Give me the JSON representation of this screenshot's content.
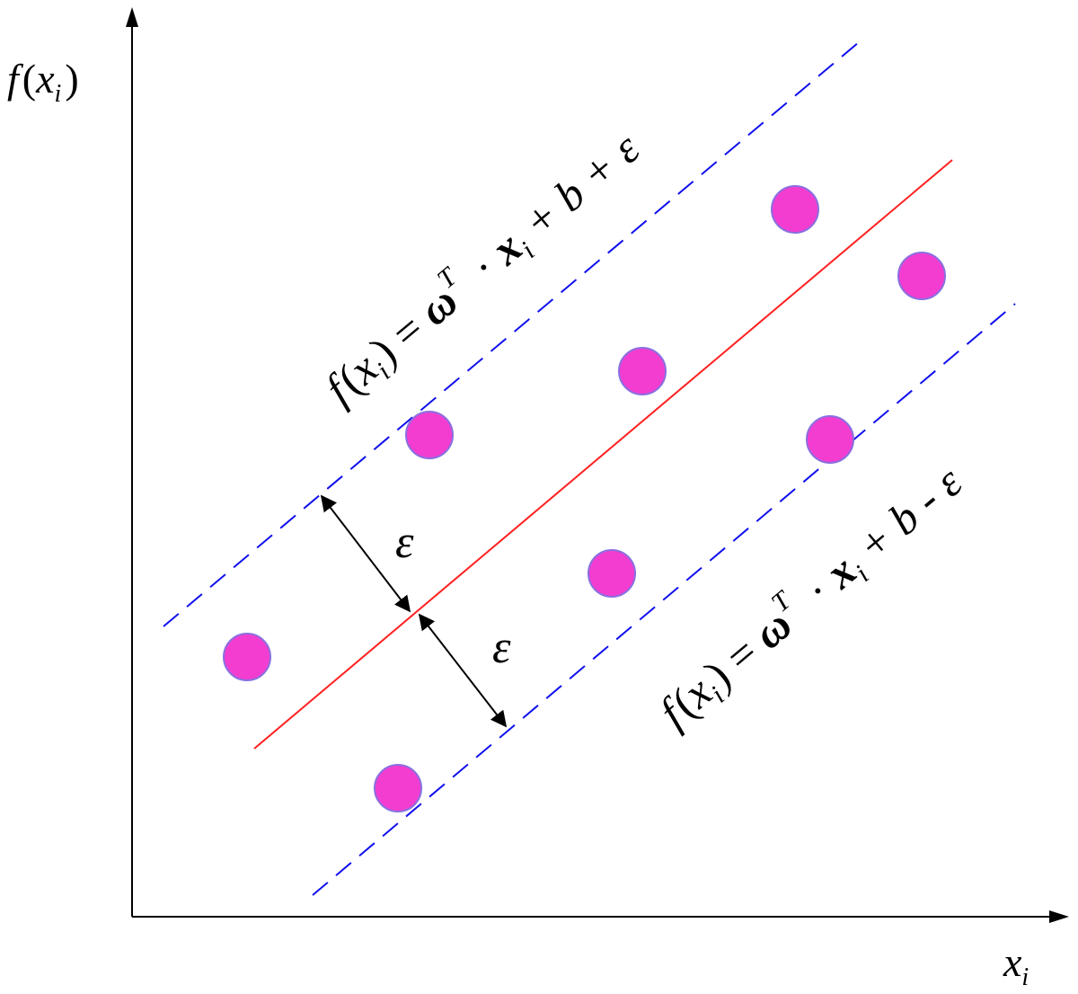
{
  "axes": {
    "y_label": {
      "f": "f",
      "open": "(",
      "x": "x",
      "sub": "i",
      "close": ")"
    },
    "x_label": {
      "x": "x",
      "sub": "i"
    }
  },
  "lines": {
    "center_color": "#ff2020",
    "margin_color": "#1010ee"
  },
  "equations": {
    "upper": {
      "f": "f",
      "open": "(",
      "x": "x",
      "sub": "i",
      "close": ")",
      "eq": " = ",
      "w": "ω",
      "sup": "T",
      "dot": " · ",
      "xb": "x",
      "sub2": "i",
      "rest": " + b + ε"
    },
    "lower": {
      "f": "f",
      "open": "(",
      "x": "x",
      "sub": "i",
      "close": ")",
      "eq": " = ",
      "w": "ω",
      "sup": "T",
      "dot": " · ",
      "xb": "x",
      "sub2": "i",
      "rest": " + b - ε"
    }
  },
  "margin_labels": {
    "upper": "ε",
    "lower": "ε"
  },
  "points": {
    "fill": "#f23dd0",
    "stroke": "#8a6fe0",
    "count": 8
  }
}
